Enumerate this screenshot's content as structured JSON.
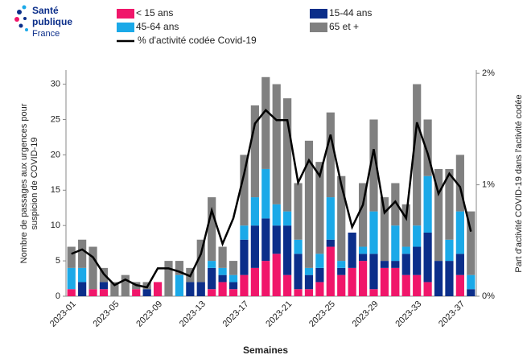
{
  "logo": {
    "line1": "Santé",
    "line2": "publique",
    "line3": "France"
  },
  "chart_data": {
    "type": "bar",
    "stacked": true,
    "xlabel": "Semaines",
    "ylabel": [
      "Nombre de passages aux urgences pour",
      "suspicion de COVID-19"
    ],
    "y2label": "Part d'activité COVID-19 dans l'activité codée",
    "categories": [
      "2023-01",
      null,
      null,
      null,
      "2023-05",
      null,
      null,
      null,
      "2023-09",
      null,
      null,
      null,
      "2023-13",
      null,
      null,
      null,
      "2023-17",
      null,
      null,
      null,
      "2023-21",
      null,
      null,
      null,
      "2023-25",
      null,
      null,
      null,
      "2023-29",
      null,
      null,
      null,
      "2023-33",
      null,
      null,
      null,
      "2023-37",
      null
    ],
    "ylim": [
      0,
      32
    ],
    "yticks": [
      0,
      5,
      10,
      15,
      20,
      25,
      30
    ],
    "y2lim": [
      0,
      2.03
    ],
    "y2ticks": [
      {
        "value": 0,
        "label": "0%"
      },
      {
        "value": 1,
        "label": "1%"
      },
      {
        "value": 2,
        "label": "2%"
      }
    ],
    "grid": false,
    "series": [
      {
        "name": "< 15 ans",
        "color": "#f0166a",
        "values": [
          1,
          0,
          1,
          1,
          0,
          0,
          1,
          0,
          2,
          0,
          0,
          0,
          0,
          1,
          2,
          1,
          3,
          4,
          5,
          6,
          3,
          1,
          1,
          2,
          7,
          3,
          4,
          5,
          1,
          4,
          4,
          3,
          3,
          2,
          0,
          0,
          3,
          0
        ]
      },
      {
        "name": "15-44 ans",
        "color": "#0b2e8a",
        "values": [
          0,
          2,
          0,
          1,
          0,
          0,
          0,
          1,
          0,
          0,
          0,
          2,
          2,
          3,
          1,
          1,
          5,
          6,
          6,
          4,
          7,
          5,
          2,
          2,
          1,
          1,
          5,
          1,
          5,
          1,
          1,
          3,
          4,
          7,
          5,
          5,
          3,
          1
        ]
      },
      {
        "name": "45-64 ans",
        "color": "#1ba9e8",
        "values": [
          3,
          2,
          0,
          0,
          0,
          0,
          0,
          0,
          0,
          0,
          3,
          0,
          0,
          1,
          1,
          1,
          2,
          4,
          7,
          3,
          2,
          2,
          1,
          2,
          6,
          1,
          0,
          1,
          6,
          0,
          5,
          1,
          3,
          8,
          0,
          3,
          6,
          2
        ]
      },
      {
        "name": "65 et +",
        "color": "#808080",
        "values": [
          3,
          4,
          6,
          2,
          2,
          3,
          1,
          1,
          0,
          5,
          2,
          2,
          6,
          9,
          3,
          2,
          10,
          13,
          13,
          17,
          16,
          8,
          18,
          13,
          12,
          12,
          0,
          9,
          13,
          9,
          6,
          6,
          20,
          8,
          13,
          10,
          8,
          9
        ]
      },
      {
        "name": "% d'activité codée Covid-19",
        "type": "line",
        "axis": "y2",
        "color": "#000000",
        "values": [
          0.38,
          0.42,
          0.35,
          0.2,
          0.1,
          0.15,
          0.1,
          0.08,
          0.25,
          0.25,
          0.22,
          0.18,
          0.38,
          0.77,
          0.47,
          0.7,
          1.1,
          1.55,
          1.67,
          1.58,
          1.58,
          1.02,
          1.22,
          1.08,
          1.45,
          1.0,
          0.62,
          0.82,
          1.32,
          0.75,
          0.85,
          0.7,
          1.56,
          1.28,
          0.92,
          1.1,
          0.98,
          0.58
        ]
      }
    ]
  }
}
